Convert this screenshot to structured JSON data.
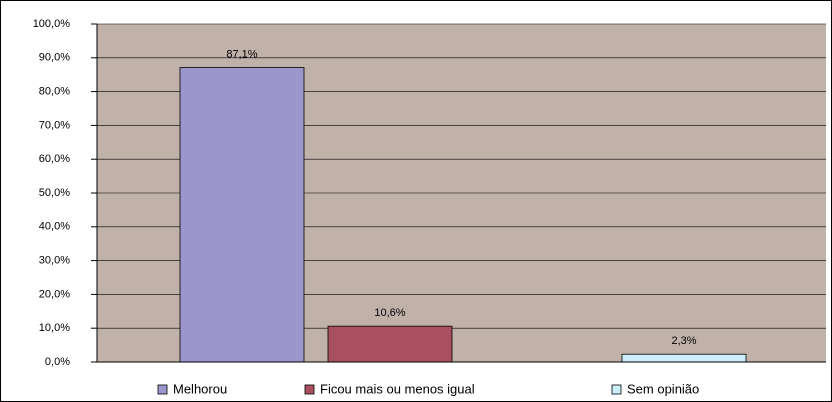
{
  "chart_data": {
    "type": "bar",
    "series": [
      {
        "name": "Melhorou",
        "color": "#9b96cc",
        "values": [
          87.1
        ],
        "value_labels": [
          "87,1%"
        ]
      },
      {
        "name": "Ficou mais ou menos igual",
        "color": "#a8505f",
        "values": [
          10.6
        ],
        "value_labels": [
          "10,6%"
        ]
      },
      {
        "name": "Sem opinião",
        "color": "#cdeefa",
        "values": [
          2.3
        ],
        "value_labels": [
          "2,3%"
        ]
      }
    ],
    "ylim": [
      0,
      100
    ],
    "yticks": [
      {
        "value": 0,
        "label": "0,0%"
      },
      {
        "value": 10,
        "label": "10,0%"
      },
      {
        "value": 20,
        "label": "20,0%"
      },
      {
        "value": 30,
        "label": "30,0%"
      },
      {
        "value": 40,
        "label": "40,0%"
      },
      {
        "value": 50,
        "label": "50,0%"
      },
      {
        "value": 60,
        "label": "60,0%"
      },
      {
        "value": 70,
        "label": "70,0%"
      },
      {
        "value": 80,
        "label": "80,0%"
      },
      {
        "value": 90,
        "label": "90,0%"
      },
      {
        "value": 100,
        "label": "100,0%"
      }
    ],
    "grid": true,
    "legend": "bottom"
  }
}
